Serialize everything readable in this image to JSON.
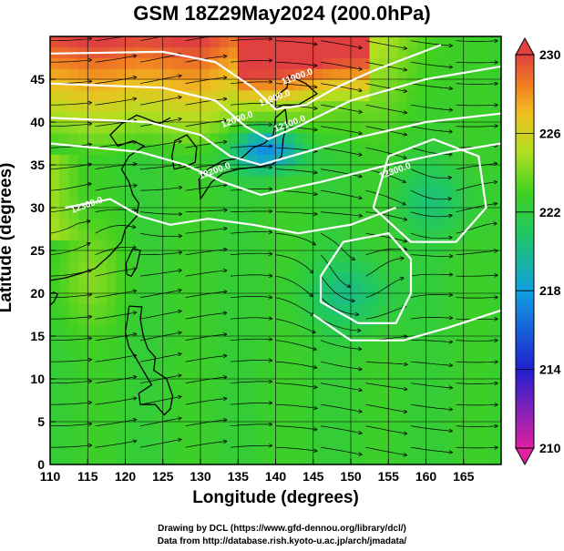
{
  "chart_data": {
    "type": "heatmap",
    "title": "GSM 18Z29May2024 (200.0hPa)",
    "xlabel": "Longitude (degrees)",
    "ylabel": "Latitude  (degrees)",
    "xlim": [
      110,
      170
    ],
    "ylim": [
      0,
      50
    ],
    "xticks": [
      110,
      115,
      120,
      125,
      130,
      135,
      140,
      145,
      150,
      155,
      160,
      165
    ],
    "yticks": [
      0,
      5,
      10,
      15,
      20,
      25,
      30,
      35,
      40,
      45
    ],
    "grid": true,
    "colorbar": {
      "position": "right",
      "min": 210,
      "max": 230,
      "ticks": [
        210,
        214,
        218,
        222,
        226,
        230
      ],
      "colors": [
        "#e020a0",
        "#2020d0",
        "#10a0e0",
        "#20c860",
        "#40d020",
        "#b0e020",
        "#f0c020",
        "#f08020",
        "#e04040"
      ]
    },
    "contour_labels": [
      {
        "text": "11900.0",
        "lon": 143,
        "lat": 45
      },
      {
        "text": "11900.0",
        "lon": 140,
        "lat": 42.5
      },
      {
        "text": "12000.0",
        "lon": 135,
        "lat": 40
      },
      {
        "text": "12100.0",
        "lon": 142,
        "lat": 39.5
      },
      {
        "text": "12200.0",
        "lon": 132,
        "lat": 34
      },
      {
        "text": "12300.0",
        "lon": 115,
        "lat": 30
      },
      {
        "text": "12300.0",
        "lon": 156,
        "lat": 34
      }
    ]
  },
  "credits": {
    "line1": "Drawing by DCL (https://www.gfd-dennou.org/library/dcl/)",
    "line2": "Data from http://database.rish.kyoto-u.ac.jp/arch/jmadata/"
  }
}
